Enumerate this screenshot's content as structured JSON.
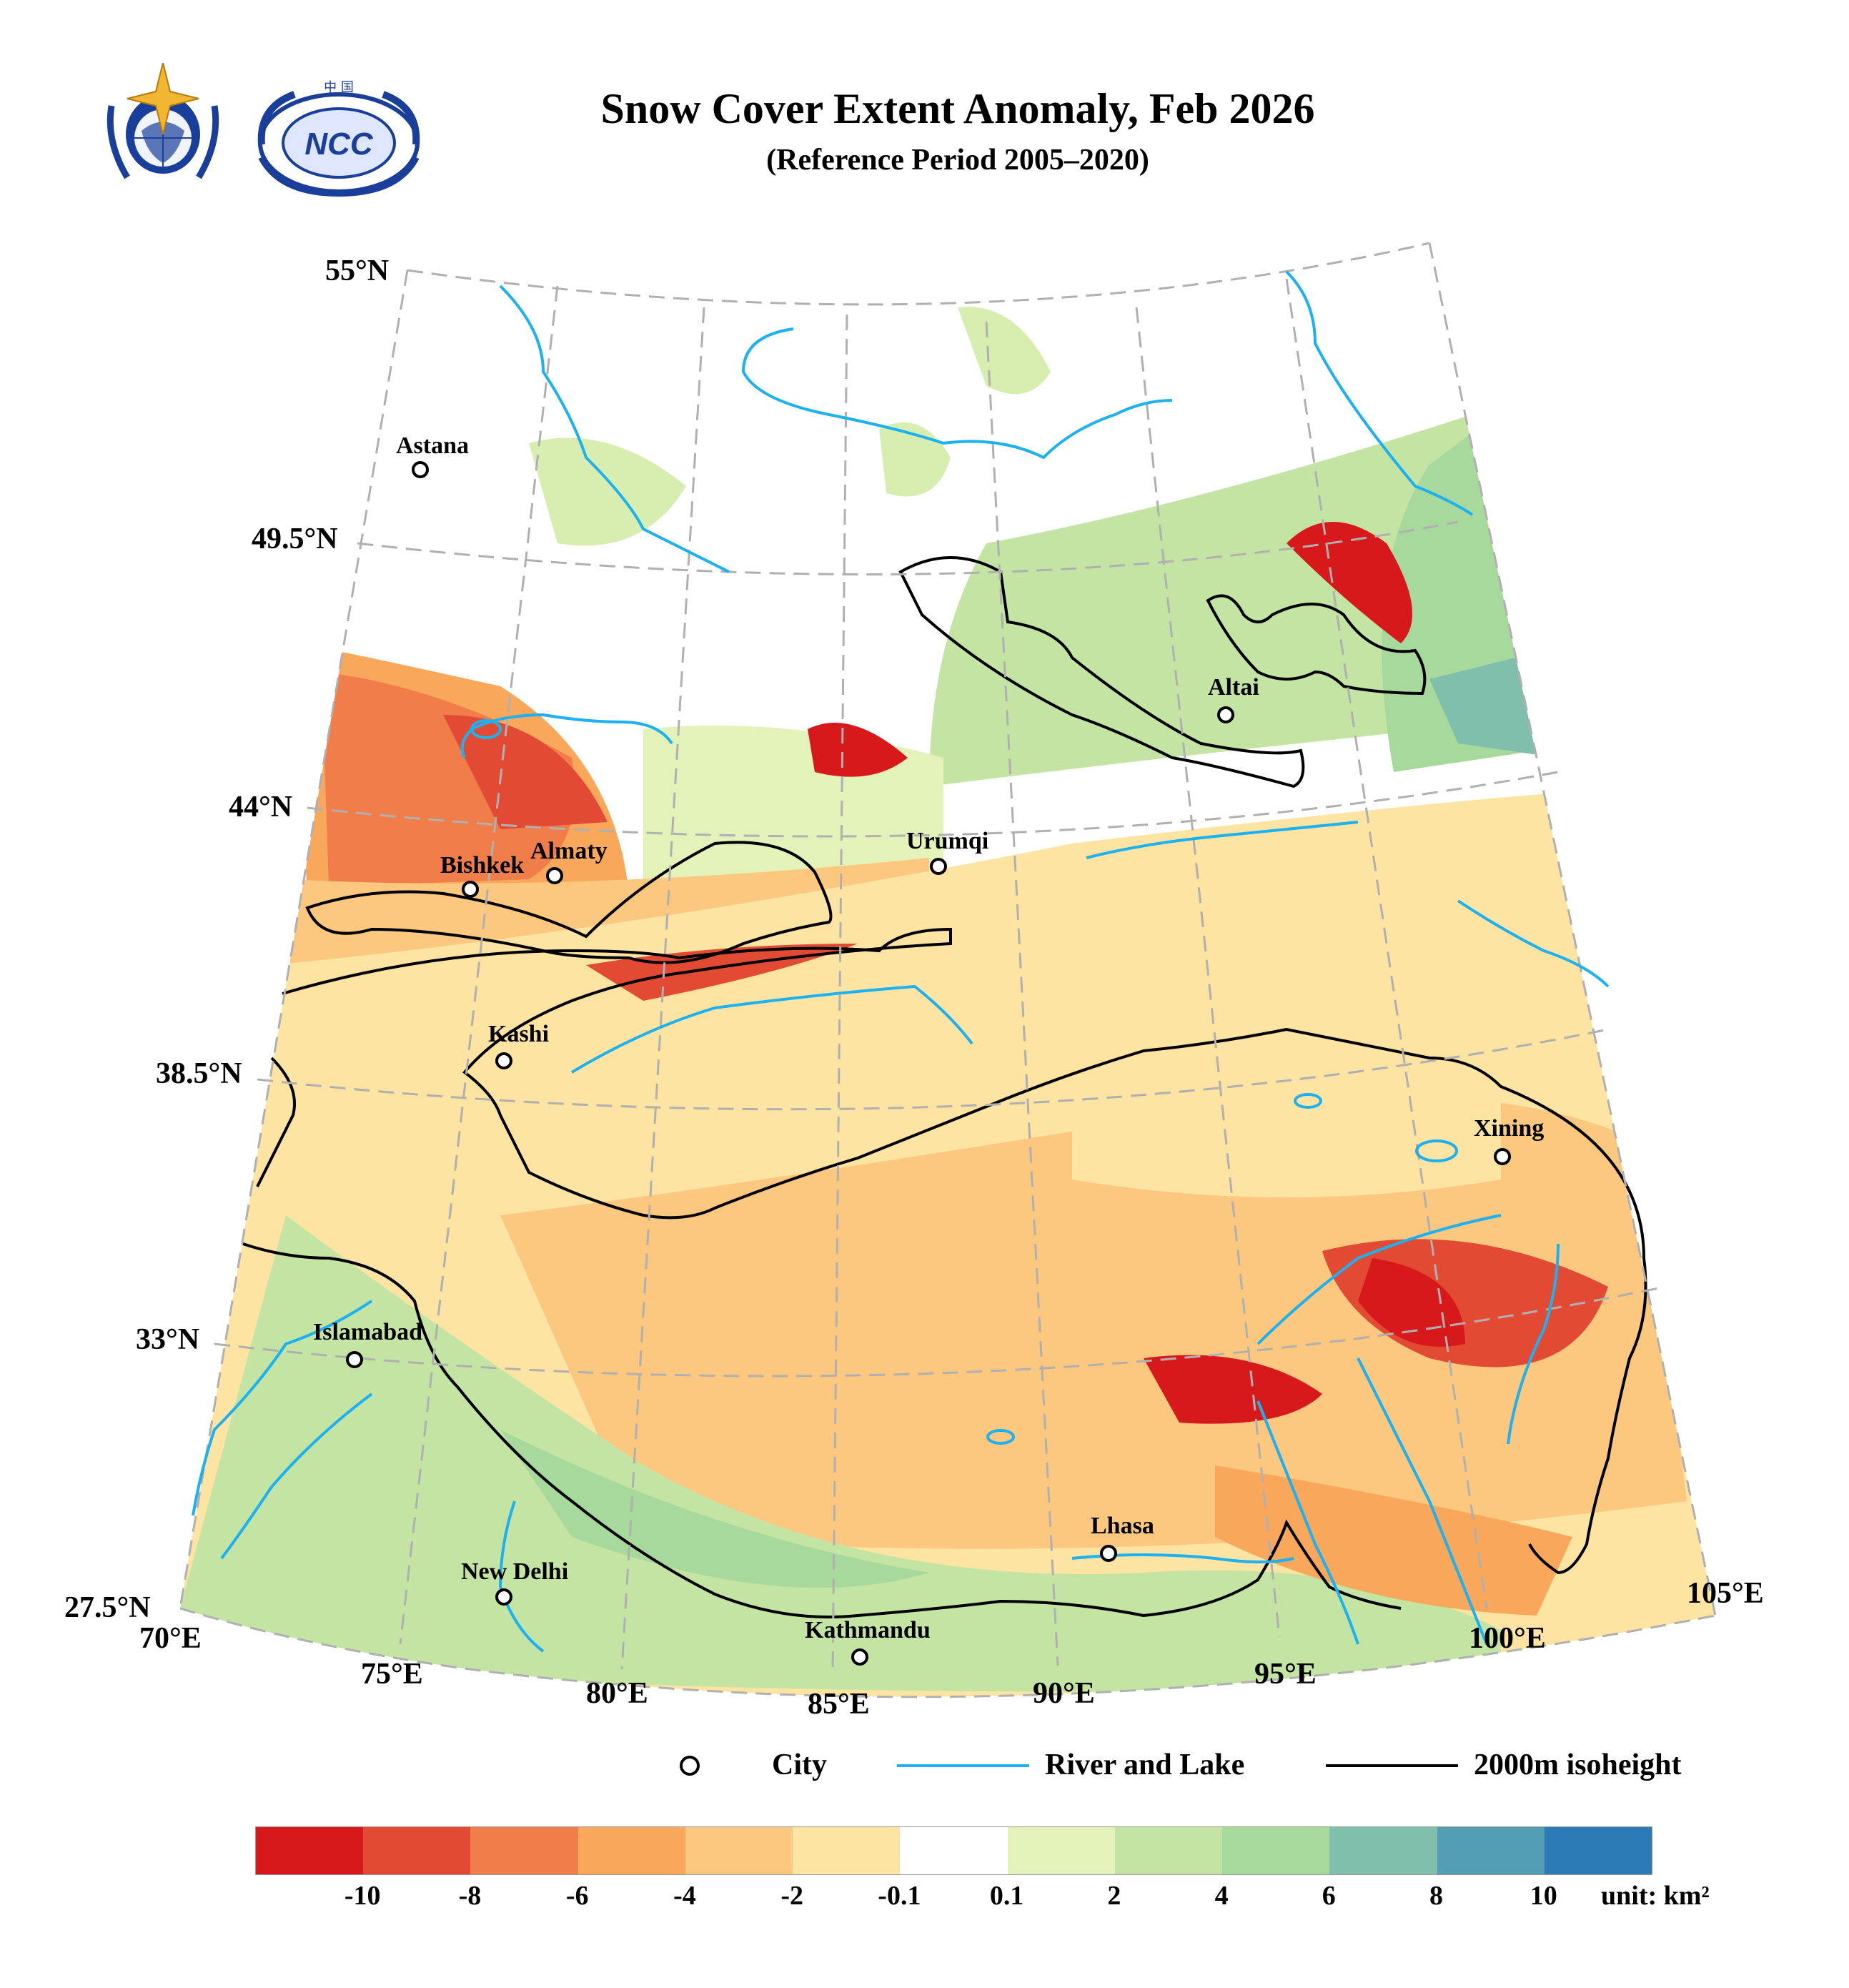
{
  "title": "Snow Cover Extent Anomaly, Feb 2026",
  "subtitle": "(Reference Period 2005–2020)",
  "logos": [
    {
      "name": "WMO emblem"
    },
    {
      "name": "NCC emblem",
      "text": "中 国 NCC"
    }
  ],
  "latitude_labels": [
    "55°N",
    "49.5°N",
    "44°N",
    "38.5°N",
    "33°N",
    "27.5°N"
  ],
  "longitude_labels": [
    "70°E",
    "75°E",
    "80°E",
    "85°E",
    "90°E",
    "95°E",
    "100°E",
    "105°E"
  ],
  "cities": [
    "Astana",
    "Almaty",
    "Bishkek",
    "Urumqi",
    "Altai",
    "Kashi",
    "Xining",
    "Islamabad",
    "Lhasa",
    "New Delhi",
    "Kathmandu"
  ],
  "legend": {
    "city": "City",
    "river": "River and Lake",
    "isoheight": "2000m isoheight"
  },
  "colorbar": {
    "ticks": [
      "-10",
      "-8",
      "-6",
      "-4",
      "-2",
      "-0.1",
      "0.1",
      "2",
      "4",
      "6",
      "8",
      "10"
    ],
    "unit": "unit: km²",
    "colors": [
      "#d7191c",
      "#e34a33",
      "#f07d4a",
      "#f9a75b",
      "#fcc880",
      "#fde4a3",
      "#ffffff",
      "#e3f2b8",
      "#c4e4a3",
      "#a8d99c",
      "#7fbfab",
      "#539eb5",
      "#2c7bb6"
    ]
  },
  "colors": {
    "river": "#1cb1f0",
    "isoheight": "#000000",
    "grid": "#b0b0b0"
  }
}
